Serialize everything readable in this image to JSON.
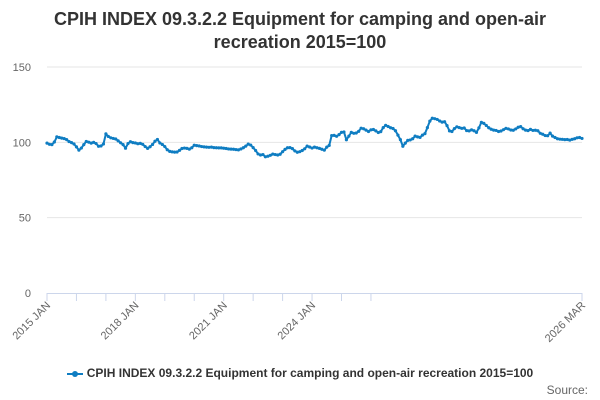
{
  "chart_data": {
    "type": "line",
    "title": "CPIH INDEX 09.3.2.2 Equipment for camping and open-air recreation 2015=100",
    "xlabel": "",
    "ylabel": "",
    "ylim": [
      0,
      150
    ],
    "yticks": [
      0,
      50,
      100,
      150
    ],
    "xtick_labels": [
      "2015 JAN",
      "2018 JAN",
      "2021 JAN",
      "2024 JAN",
      "2026 MAR"
    ],
    "grid": true,
    "legend_position": "bottom",
    "series": [
      {
        "name": "CPIH INDEX 09.3.2.2 Equipment for camping and open-air recreation 2015=100",
        "color": "#0f7dc2",
        "start": "2015-01",
        "values": [
          99.5,
          98.7,
          98.5,
          100.2,
          103.6,
          103.2,
          102.8,
          102.5,
          101.8,
          100.5,
          99.8,
          98.9,
          97.0,
          94.8,
          96.2,
          98.5,
          100.6,
          100.1,
          99.5,
          100.0,
          99.2,
          97.4,
          97.6,
          98.9,
          105.6,
          103.9,
          103.0,
          102.6,
          102.2,
          101.0,
          99.7,
          98.5,
          96.1,
          99.2,
          100.4,
          99.8,
          99.6,
          99.1,
          99.3,
          98.7,
          97.2,
          96.0,
          97.1,
          98.6,
          100.7,
          101.9,
          99.6,
          98.6,
          97.2,
          95.1,
          94.0,
          93.7,
          93.5,
          93.6,
          94.7,
          95.9,
          96.2,
          96.0,
          95.5,
          96.4,
          98.1,
          97.8,
          97.6,
          97.2,
          97.0,
          96.8,
          96.7,
          96.8,
          96.5,
          96.4,
          96.3,
          96.3,
          96.1,
          95.9,
          95.6,
          95.5,
          95.4,
          95.2,
          95.0,
          95.6,
          96.4,
          97.5,
          98.8,
          98.2,
          96.5,
          94.6,
          92.3,
          91.6,
          91.9,
          90.4,
          90.8,
          91.4,
          92.2,
          91.9,
          91.6,
          92.1,
          93.8,
          95.3,
          96.4,
          96.5,
          95.8,
          94.3,
          93.4,
          93.8,
          94.6,
          95.7,
          97.5,
          96.9,
          96.2,
          96.8,
          96.4,
          96.0,
          95.4,
          94.8,
          96.8,
          98.0,
          104.5,
          104.6,
          104.0,
          105.1,
          106.6,
          106.9,
          101.7,
          104.1,
          106.6,
          106.0,
          106.2,
          107.3,
          109.4,
          109.0,
          108.1,
          107.2,
          108.3,
          108.5,
          107.6,
          106.5,
          107.1,
          109.8,
          111.3,
          110.5,
          109.7,
          109.2,
          107.7,
          104.8,
          101.8,
          97.4,
          99.5,
          101.3,
          101.6,
          102.4,
          104.1,
          103.6,
          103.3,
          104.8,
          105.8,
          109.8,
          114.1,
          116.0,
          115.7,
          115.2,
          114.2,
          113.4,
          113.7,
          111.1,
          107.6,
          107.2,
          109.1,
          110.3,
          109.8,
          109.3,
          109.5,
          107.8,
          107.6,
          108.3,
          107.7,
          106.6,
          109.6,
          113.3,
          112.6,
          111.2,
          109.7,
          108.7,
          108.1,
          107.9,
          107.2,
          107.5,
          108.4,
          109.3,
          108.9,
          108.2,
          108.0,
          108.9,
          110.0,
          110.4,
          109.0,
          108.1,
          107.8,
          108.6,
          107.9,
          108.0,
          107.7,
          106.0,
          105.4,
          104.5,
          104.4,
          106.1,
          104.1,
          103.2,
          102.4,
          102.1,
          102.0,
          101.8,
          101.9,
          101.5,
          102.0,
          102.4,
          103.0,
          103.2,
          102.6
        ]
      }
    ]
  },
  "source_label": "Source:"
}
